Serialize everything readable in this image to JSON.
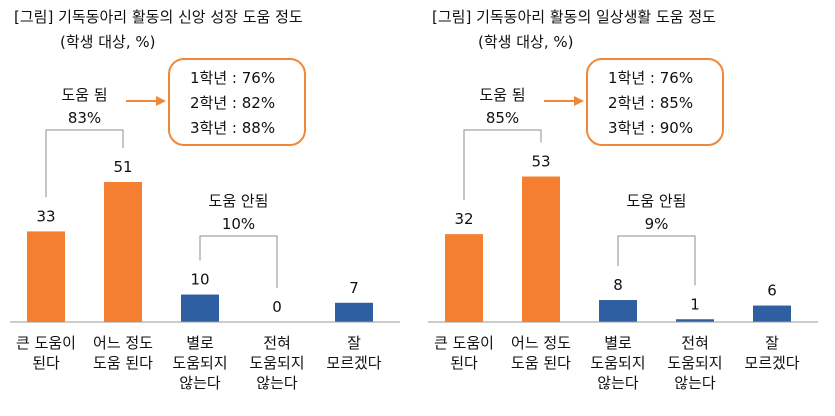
{
  "chart_data": [
    {
      "type": "bar",
      "title": "[그림] 기독동아리 활동의 신앙 성장 도움 정도",
      "subtitle": "(학생 대상, %)",
      "categories": [
        [
          "큰 도움이",
          "된다"
        ],
        [
          "어느 정도",
          "도움 된다"
        ],
        [
          "별로",
          "도움되지",
          "않는다"
        ],
        [
          "전혀",
          "도움되지",
          "않는다"
        ],
        [
          "잘",
          "모르겠다"
        ]
      ],
      "values": [
        33,
        51,
        10,
        0,
        7
      ],
      "colors": [
        "#f47f30",
        "#f47f30",
        "#2e5fa3",
        "#2e5fa3",
        "#2e5fa3"
      ],
      "groups": [
        {
          "label": "도움 됨",
          "value": "83%",
          "covers": [
            0,
            1
          ]
        },
        {
          "label": "도움 안됨",
          "value": "10%",
          "covers": [
            2,
            3
          ]
        }
      ],
      "callout": [
        "1학년 : 76%",
        "2학년 : 82%",
        "3학년 : 88%"
      ],
      "ylim": [
        0,
        60
      ],
      "grid": false
    },
    {
      "type": "bar",
      "title": "[그림] 기독동아리 활동의 일상생활 도움 정도",
      "subtitle": "(학생 대상, %)",
      "categories": [
        [
          "큰 도움이",
          "된다"
        ],
        [
          "어느 정도",
          "도움 된다"
        ],
        [
          "별로",
          "도움되지",
          "않는다"
        ],
        [
          "전혀",
          "도움되지",
          "않는다"
        ],
        [
          "잘",
          "모르겠다"
        ]
      ],
      "values": [
        32,
        53,
        8,
        1,
        6
      ],
      "colors": [
        "#f47f30",
        "#f47f30",
        "#2e5fa3",
        "#2e5fa3",
        "#2e5fa3"
      ],
      "groups": [
        {
          "label": "도움 됨",
          "value": "85%",
          "covers": [
            0,
            1
          ]
        },
        {
          "label": "도움 안됨",
          "value": "9%",
          "covers": [
            2,
            3
          ]
        }
      ],
      "callout": [
        "1학년 : 76%",
        "2학년 : 85%",
        "3학년 : 90%"
      ],
      "ylim": [
        0,
        60
      ],
      "grid": false
    }
  ],
  "accent_color": "#f0883a"
}
